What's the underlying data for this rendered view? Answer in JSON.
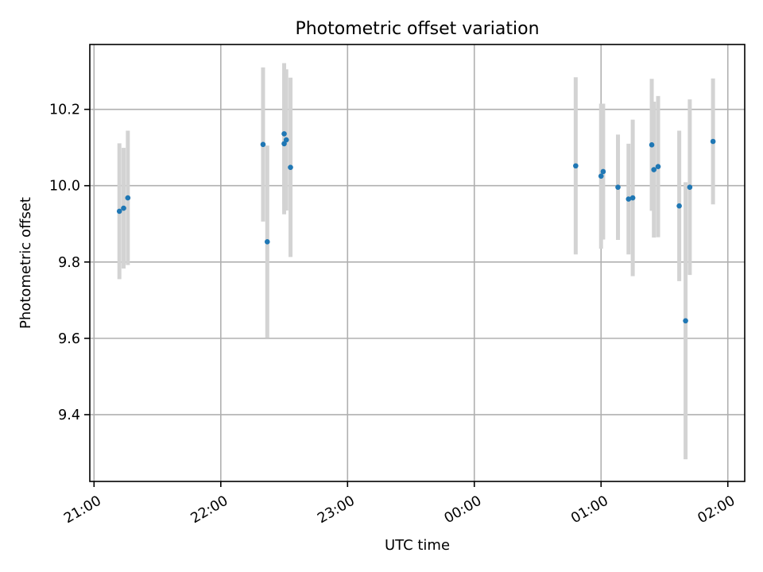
{
  "chart_data": {
    "type": "scatter",
    "title": "Photometric offset variation",
    "xlabel": "UTC time",
    "ylabel": "Photometric offset",
    "x_axis_type": "time",
    "xlim": [
      "20:58",
      "02:08"
    ],
    "ylim": [
      9.225,
      10.37
    ],
    "xticks": [
      "21:00",
      "22:00",
      "23:00",
      "00:00",
      "01:00",
      "02:00"
    ],
    "yticks": [
      9.4,
      9.6,
      9.8,
      10.0,
      10.2
    ],
    "ytick_labels": [
      "9.4",
      "9.6",
      "9.8",
      "10.0",
      "10.2"
    ],
    "grid": true,
    "tick_label_rotation": 30,
    "series": [
      {
        "marker_color": "#1f77b4",
        "errorbar_color": "#d3d3d3",
        "points": [
          {
            "x": "21:12",
            "y": 9.933,
            "err": 0.178
          },
          {
            "x": "21:14",
            "y": 9.941,
            "err": 0.158
          },
          {
            "x": "21:16",
            "y": 9.968,
            "err": 0.176
          },
          {
            "x": "22:20",
            "y": 10.108,
            "err": 0.202
          },
          {
            "x": "22:22",
            "y": 9.853,
            "err": 0.252
          },
          {
            "x": "22:30",
            "y": 10.136,
            "err": 0.185
          },
          {
            "x": "22:30",
            "y": 10.11,
            "err": 0.185
          },
          {
            "x": "22:31",
            "y": 10.12,
            "err": 0.185
          },
          {
            "x": "22:33",
            "y": 10.048,
            "err": 0.235
          },
          {
            "x": "00:48",
            "y": 10.052,
            "err": 0.232
          },
          {
            "x": "01:00",
            "y": 10.025,
            "err": 0.19
          },
          {
            "x": "01:01",
            "y": 10.037,
            "err": 0.178
          },
          {
            "x": "01:08",
            "y": 9.996,
            "err": 0.138
          },
          {
            "x": "01:13",
            "y": 9.965,
            "err": 0.145
          },
          {
            "x": "01:15",
            "y": 9.968,
            "err": 0.205
          },
          {
            "x": "01:24",
            "y": 10.107,
            "err": 0.173
          },
          {
            "x": "01:25",
            "y": 10.042,
            "err": 0.178
          },
          {
            "x": "01:27",
            "y": 10.05,
            "err": 0.185
          },
          {
            "x": "01:37",
            "y": 9.947,
            "err": 0.197
          },
          {
            "x": "01:40",
            "y": 9.646,
            "err": 0.363
          },
          {
            "x": "01:42",
            "y": 9.996,
            "err": 0.23
          },
          {
            "x": "01:53",
            "y": 10.116,
            "err": 0.165
          }
        ]
      }
    ]
  }
}
